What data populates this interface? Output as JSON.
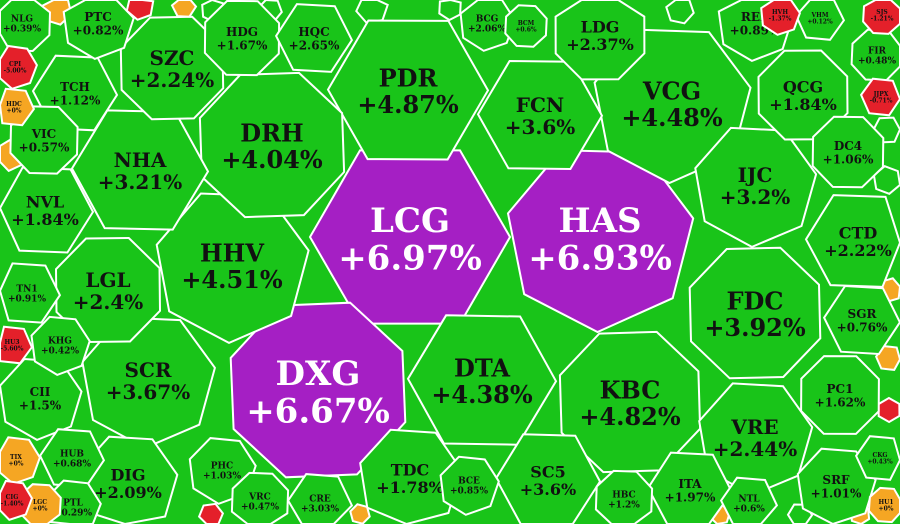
{
  "chart_data": {
    "type": "heatmap",
    "title": "",
    "colors": {
      "purple": "#a51fc4",
      "green": "#19c419",
      "orange": "#f5a623",
      "red": "#e4202a",
      "cell_border": "#ffffff"
    },
    "cells": [
      {
        "ticker": "LCG",
        "change": "+6.97%",
        "value": 6.97,
        "color": "purple"
      },
      {
        "ticker": "HAS",
        "change": "+6.93%",
        "value": 6.93,
        "color": "purple"
      },
      {
        "ticker": "DXG",
        "change": "+6.67%",
        "value": 6.67,
        "color": "purple"
      },
      {
        "ticker": "PDR",
        "change": "+4.87%",
        "value": 4.87,
        "color": "green"
      },
      {
        "ticker": "VCG",
        "change": "+4.48%",
        "value": 4.48,
        "color": "green"
      },
      {
        "ticker": "DRH",
        "change": "+4.04%",
        "value": 4.04,
        "color": "green"
      },
      {
        "ticker": "FCN",
        "change": "+3.6%",
        "value": 3.6,
        "color": "green"
      },
      {
        "ticker": "HHV",
        "change": "+4.51%",
        "value": 4.51,
        "color": "green"
      },
      {
        "ticker": "KBC",
        "change": "+4.82%",
        "value": 4.82,
        "color": "green"
      },
      {
        "ticker": "DTA",
        "change": "+4.38%",
        "value": 4.38,
        "color": "green"
      },
      {
        "ticker": "SCR",
        "change": "+3.67%",
        "value": 3.67,
        "color": "green"
      },
      {
        "ticker": "FDC",
        "change": "+3.92%",
        "value": 3.92,
        "color": "green"
      },
      {
        "ticker": "NHA",
        "change": "+3.21%",
        "value": 3.21,
        "color": "green"
      },
      {
        "ticker": "IJC",
        "change": "+3.2%",
        "value": 3.2,
        "color": "green"
      },
      {
        "ticker": "SZC",
        "change": "+2.24%",
        "value": 2.24,
        "color": "green"
      },
      {
        "ticker": "SC5",
        "change": "+3.6%",
        "value": 3.6,
        "color": "green"
      },
      {
        "ticker": "VRE",
        "change": "+2.44%",
        "value": 2.44,
        "color": "green"
      },
      {
        "ticker": "LGL",
        "change": "+2.4%",
        "value": 2.4,
        "color": "green"
      },
      {
        "ticker": "CTD",
        "change": "+2.22%",
        "value": 2.22,
        "color": "green"
      },
      {
        "ticker": "DIG",
        "change": "+2.09%",
        "value": 2.09,
        "color": "green"
      },
      {
        "ticker": "QCG",
        "change": "+1.84%",
        "value": 1.84,
        "color": "green"
      },
      {
        "ticker": "NVL",
        "change": "+1.84%",
        "value": 1.84,
        "color": "green"
      },
      {
        "ticker": "TDC",
        "change": "+1.78%",
        "value": 1.78,
        "color": "green"
      },
      {
        "ticker": "LDG",
        "change": "+2.37%",
        "value": 2.37,
        "color": "green"
      },
      {
        "ticker": "TCH",
        "change": "+1.12%",
        "value": 1.12,
        "color": "green"
      },
      {
        "ticker": "CII",
        "change": "+1.5%",
        "value": 1.5,
        "color": "green"
      },
      {
        "ticker": "PC1",
        "change": "+1.62%",
        "value": 1.62,
        "color": "green"
      },
      {
        "ticker": "ITA",
        "change": "+1.97%",
        "value": 1.97,
        "color": "green"
      },
      {
        "ticker": "SRF",
        "change": "+1.01%",
        "value": 1.01,
        "color": "green"
      },
      {
        "ticker": "HDG",
        "change": "+1.67%",
        "value": 1.67,
        "color": "green"
      },
      {
        "ticker": "HQC",
        "change": "+2.65%",
        "value": 2.65,
        "color": "green"
      },
      {
        "ticker": "REE",
        "change": "+0.89%",
        "value": 0.89,
        "color": "green"
      },
      {
        "ticker": "DC4",
        "change": "+1.06%",
        "value": 1.06,
        "color": "green"
      },
      {
        "ticker": "SGR",
        "change": "+0.76%",
        "value": 0.76,
        "color": "green"
      },
      {
        "ticker": "PTC",
        "change": "+0.82%",
        "value": 0.82,
        "color": "green"
      },
      {
        "ticker": "VIC",
        "change": "+0.57%",
        "value": 0.57,
        "color": "green"
      },
      {
        "ticker": "TN1",
        "change": "+0.91%",
        "value": 0.91,
        "color": "green"
      },
      {
        "ticker": "KHG",
        "change": "+0.42%",
        "value": 0.42,
        "color": "green"
      },
      {
        "ticker": "NLG",
        "change": "+0.39%",
        "value": 0.39,
        "color": "green"
      },
      {
        "ticker": "HUB",
        "change": "+0.68%",
        "value": 0.68,
        "color": "green"
      },
      {
        "ticker": "PHC",
        "change": "+1.03%",
        "value": 1.03,
        "color": "green"
      },
      {
        "ticker": "VRC",
        "change": "+0.47%",
        "value": 0.47,
        "color": "green"
      },
      {
        "ticker": "CRE",
        "change": "+3.03%",
        "value": 3.03,
        "color": "green"
      },
      {
        "ticker": "BCE",
        "change": "+0.85%",
        "value": 0.85,
        "color": "green"
      },
      {
        "ticker": "HBC",
        "change": "+1.2%",
        "value": 1.2,
        "color": "green"
      },
      {
        "ticker": "NTL",
        "change": "+0.6%",
        "value": 0.6,
        "color": "green"
      },
      {
        "ticker": "PTL",
        "change": "+0.29%",
        "value": 0.29,
        "color": "green"
      },
      {
        "ticker": "FIR",
        "change": "+0.48%",
        "value": 0.48,
        "color": "green"
      },
      {
        "ticker": "CKG",
        "change": "+0.43%",
        "value": 0.43,
        "color": "green"
      },
      {
        "ticker": "BCG",
        "change": "+2.06%",
        "value": 2.06,
        "color": "green"
      },
      {
        "ticker": "BCM",
        "change": "+0.6%",
        "value": 0.6,
        "color": "green"
      },
      {
        "ticker": "VHM",
        "change": "+0.12%",
        "value": 0.12,
        "color": "green"
      },
      {
        "ticker": "TIX",
        "change": "+0%",
        "value": 0,
        "color": "orange"
      },
      {
        "ticker": "LGC",
        "change": "+0%",
        "value": 0,
        "color": "orange"
      },
      {
        "ticker": "HDC",
        "change": "+0%",
        "value": 0,
        "color": "orange"
      },
      {
        "ticker": "HVH",
        "change": "-1.37%",
        "value": -1.37,
        "color": "red"
      },
      {
        "ticker": "SJS",
        "change": "-1.21%",
        "value": -1.21,
        "color": "red"
      },
      {
        "ticker": "JJPX",
        "change": "-0.71%",
        "value": -0.71,
        "color": "red"
      },
      {
        "ticker": "CIG",
        "change": "-1.40%",
        "value": -1.4,
        "color": "red"
      },
      {
        "ticker": "HU1",
        "change": "+0%",
        "value": 0,
        "color": "orange"
      },
      {
        "ticker": "HU3",
        "change": "-5.60%",
        "value": -5.6,
        "color": "red"
      },
      {
        "ticker": "CPI",
        "change": "-5.00%",
        "value": -5.0,
        "color": "red"
      }
    ]
  }
}
